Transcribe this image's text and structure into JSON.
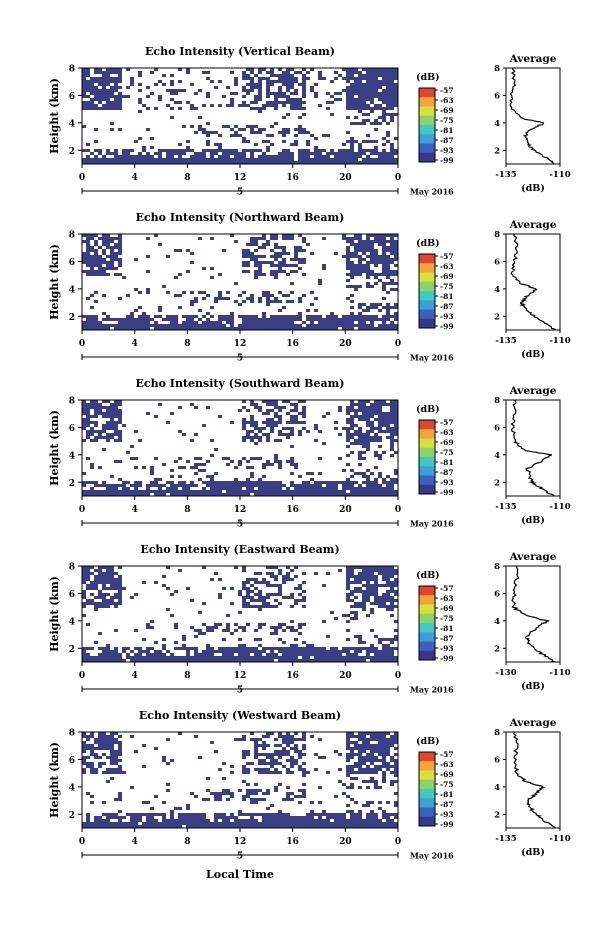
{
  "figure": {
    "xlabel": "Local Time",
    "date_label": "May 2016",
    "day_marker": "5",
    "cb_unit": "(dB)",
    "avg_title": "Average",
    "avg_xlabel": "(dB)",
    "ylabel": "Height (km)"
  },
  "colors": {
    "echo_fill": "#3a3f85",
    "colorbar": [
      "#36388a",
      "#3d5fbd",
      "#3aa0d8",
      "#43c9c0",
      "#8ad36a",
      "#d8df3e",
      "#f2a33a",
      "#e0452e"
    ]
  },
  "chart_data": [
    {
      "type": "heatmap",
      "title": "Echo Intensity (Vertical Beam)",
      "xticks": [
        "0",
        "4",
        "8",
        "12",
        "16",
        "20",
        "0"
      ],
      "x_range": [
        0,
        24
      ],
      "ylim": [
        1,
        8
      ],
      "yticks": [
        2,
        4,
        6,
        8
      ],
      "colorbar_ticks": [
        "-57",
        "-63",
        "-69",
        "-75",
        "-81",
        "-87",
        "-93",
        "-99"
      ],
      "average": {
        "xticks": [
          "-135",
          "-110"
        ],
        "xlim": [
          -135,
          -110
        ],
        "yticks": [
          2,
          4,
          6,
          8
        ],
        "ylim": [
          1,
          8
        ],
        "profile": [
          [
            1,
            -112
          ],
          [
            1.5,
            -117
          ],
          [
            2,
            -122
          ],
          [
            2.5,
            -125
          ],
          [
            3,
            -126
          ],
          [
            3.5,
            -124
          ],
          [
            4,
            -117
          ],
          [
            4.3,
            -127
          ],
          [
            5,
            -132
          ],
          [
            6,
            -133
          ],
          [
            7,
            -131
          ],
          [
            8,
            -132
          ]
        ]
      }
    },
    {
      "type": "heatmap",
      "title": "Echo Intensity (Northward Beam)",
      "xticks": [
        "0",
        "4",
        "8",
        "12",
        "16",
        "20",
        "0"
      ],
      "x_range": [
        0,
        24
      ],
      "ylim": [
        1,
        8
      ],
      "yticks": [
        2,
        4,
        6,
        8
      ],
      "colorbar_ticks": [
        "-57",
        "-63",
        "-69",
        "-75",
        "-81",
        "-87",
        "-93",
        "-99"
      ],
      "average": {
        "xticks": [
          "-135",
          "-110"
        ],
        "xlim": [
          -135,
          -110
        ],
        "yticks": [
          2,
          4,
          6,
          8
        ],
        "ylim": [
          1,
          8
        ],
        "profile": [
          [
            1,
            -112
          ],
          [
            1.5,
            -117
          ],
          [
            2,
            -122
          ],
          [
            2.5,
            -126
          ],
          [
            3,
            -128
          ],
          [
            3.5,
            -125
          ],
          [
            4,
            -121
          ],
          [
            4.4,
            -128
          ],
          [
            5,
            -132
          ],
          [
            6,
            -131
          ],
          [
            7,
            -130
          ],
          [
            8,
            -131
          ]
        ]
      }
    },
    {
      "type": "heatmap",
      "title": "Echo Intensity (Southward Beam)",
      "xticks": [
        "0",
        "4",
        "8",
        "12",
        "16",
        "20",
        "0"
      ],
      "x_range": [
        0,
        24
      ],
      "ylim": [
        1,
        8
      ],
      "yticks": [
        2,
        4,
        6,
        8
      ],
      "colorbar_ticks": [
        "-57",
        "-63",
        "-69",
        "-75",
        "-81",
        "-87",
        "-93",
        "-99"
      ],
      "average": {
        "xticks": [
          "-135",
          "-110"
        ],
        "xlim": [
          -135,
          -110
        ],
        "yticks": [
          2,
          4,
          6,
          8
        ],
        "ylim": [
          1,
          8
        ],
        "profile": [
          [
            1,
            -113
          ],
          [
            1.5,
            -118
          ],
          [
            2,
            -123
          ],
          [
            2.5,
            -124
          ],
          [
            3,
            -125
          ],
          [
            3.5,
            -119
          ],
          [
            4,
            -114
          ],
          [
            4.3,
            -126
          ],
          [
            5,
            -131
          ],
          [
            6,
            -132
          ],
          [
            7,
            -131
          ],
          [
            8,
            -131
          ]
        ]
      }
    },
    {
      "type": "heatmap",
      "title": "Echo Intensity (Eastward Beam)",
      "xticks": [
        "0",
        "4",
        "8",
        "12",
        "16",
        "20",
        "0"
      ],
      "x_range": [
        0,
        24
      ],
      "ylim": [
        1,
        8
      ],
      "yticks": [
        2,
        4,
        6,
        8
      ],
      "colorbar_ticks": [
        "-57",
        "-63",
        "-69",
        "-75",
        "-81",
        "-87",
        "-93",
        "-99"
      ],
      "average": {
        "xticks": [
          "-130",
          "-110"
        ],
        "xlim": [
          -130,
          -110
        ],
        "yticks": [
          2,
          4,
          6,
          8
        ],
        "ylim": [
          1,
          8
        ],
        "profile": [
          [
            1,
            -112
          ],
          [
            1.5,
            -116
          ],
          [
            2,
            -120
          ],
          [
            2.5,
            -122
          ],
          [
            3,
            -122
          ],
          [
            3.5,
            -118
          ],
          [
            4,
            -115
          ],
          [
            4.4,
            -123
          ],
          [
            5,
            -127
          ],
          [
            6,
            -127
          ],
          [
            7,
            -126
          ],
          [
            8,
            -126
          ]
        ]
      }
    },
    {
      "type": "heatmap",
      "title": "Echo Intensity (Westward Beam)",
      "xticks": [
        "0",
        "4",
        "8",
        "12",
        "16",
        "20",
        "0"
      ],
      "x_range": [
        0,
        24
      ],
      "ylim": [
        1,
        8
      ],
      "yticks": [
        2,
        4,
        6,
        8
      ],
      "colorbar_ticks": [
        "-57",
        "-63",
        "-69",
        "-75",
        "-81",
        "-87",
        "-93",
        "-99"
      ],
      "average": {
        "xticks": [
          "-135",
          "-110"
        ],
        "xlim": [
          -135,
          -110
        ],
        "yticks": [
          2,
          4,
          6,
          8
        ],
        "ylim": [
          1,
          8
        ],
        "profile": [
          [
            1,
            -112
          ],
          [
            1.5,
            -117
          ],
          [
            2,
            -121
          ],
          [
            2.5,
            -124
          ],
          [
            3,
            -125
          ],
          [
            3.5,
            -121
          ],
          [
            4,
            -118
          ],
          [
            4.4,
            -126
          ],
          [
            5,
            -130
          ],
          [
            6,
            -131
          ],
          [
            7,
            -130
          ],
          [
            8,
            -131
          ]
        ]
      }
    }
  ]
}
